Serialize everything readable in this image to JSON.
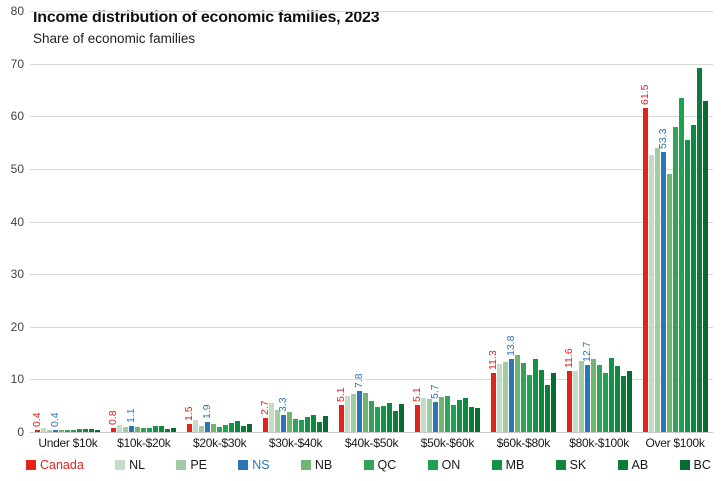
{
  "chart": {
    "title": "Income distribution of economic families, 2023",
    "subtitle": "Share of economic families"
  },
  "chart_data": {
    "type": "bar",
    "title": "Income distribution of economic families, 2023",
    "subtitle": "Share of economic families",
    "xlabel": "",
    "ylabel": "",
    "ylim": [
      0,
      80
    ],
    "y_ticks": [
      0,
      10,
      20,
      30,
      40,
      50,
      60,
      70,
      80
    ],
    "grid": "horizontal",
    "gridline_color": "#d9d9d9",
    "legend_position": "bottom",
    "data_label_note": "rotated 90deg labels shown only for Canada (red) and NS (blue) series",
    "categories": [
      "Under $10k",
      "$10k-$20k",
      "$20k-$30k",
      "$30k-$40k",
      "$40k-$50k",
      "$50k-$60k",
      "$60k-$80k",
      "$80k-$100k",
      "Over $100k"
    ],
    "series": [
      {
        "name": "Canada",
        "color": "#e2231a",
        "labels_shown": true,
        "values": [
          0.4,
          0.8,
          1.5,
          2.7,
          5.1,
          5.1,
          11.3,
          11.6,
          61.5
        ]
      },
      {
        "name": "NL",
        "color": "#c6dbc6",
        "labels_shown": false,
        "values": [
          0.8,
          1.4,
          2.3,
          5.6,
          6.9,
          6.4,
          12.9,
          11.5,
          52.6
        ]
      },
      {
        "name": "PE",
        "color": "#a3cba3",
        "labels_shown": false,
        "values": [
          0.4,
          1.0,
          1.2,
          4.1,
          7.2,
          6.3,
          13.3,
          13.5,
          54.0
        ]
      },
      {
        "name": "NS",
        "color": "#2e75b6",
        "labels_shown": true,
        "values": [
          0.4,
          1.1,
          1.9,
          3.3,
          7.8,
          5.7,
          13.8,
          12.7,
          53.3
        ]
      },
      {
        "name": "NB",
        "color": "#70b570",
        "labels_shown": false,
        "values": [
          0.4,
          0.9,
          1.6,
          3.8,
          7.4,
          6.6,
          14.6,
          13.8,
          49.0
        ]
      },
      {
        "name": "QC",
        "color": "#33a457",
        "labels_shown": false,
        "values": [
          0.3,
          0.7,
          1.0,
          2.4,
          5.9,
          6.9,
          13.1,
          12.8,
          58.0
        ]
      },
      {
        "name": "ON",
        "color": "#1ea150",
        "labels_shown": false,
        "values": [
          0.4,
          0.8,
          1.4,
          2.2,
          4.8,
          5.2,
          10.9,
          11.3,
          63.5
        ]
      },
      {
        "name": "MB",
        "color": "#149347",
        "labels_shown": false,
        "values": [
          0.5,
          1.1,
          1.8,
          2.8,
          4.9,
          6.0,
          13.9,
          14.0,
          55.5
        ]
      },
      {
        "name": "SK",
        "color": "#0f883f",
        "labels_shown": false,
        "values": [
          0.6,
          1.2,
          2.0,
          3.3,
          5.5,
          6.4,
          11.7,
          12.6,
          58.3
        ]
      },
      {
        "name": "AB",
        "color": "#0c7d39",
        "labels_shown": false,
        "values": [
          0.5,
          0.6,
          1.1,
          1.9,
          3.9,
          4.8,
          9.0,
          10.6,
          69.1
        ]
      },
      {
        "name": "BC",
        "color": "#086b31",
        "labels_shown": false,
        "values": [
          0.4,
          0.8,
          1.5,
          3.0,
          5.4,
          4.5,
          11.2,
          11.6,
          62.9
        ]
      }
    ]
  }
}
